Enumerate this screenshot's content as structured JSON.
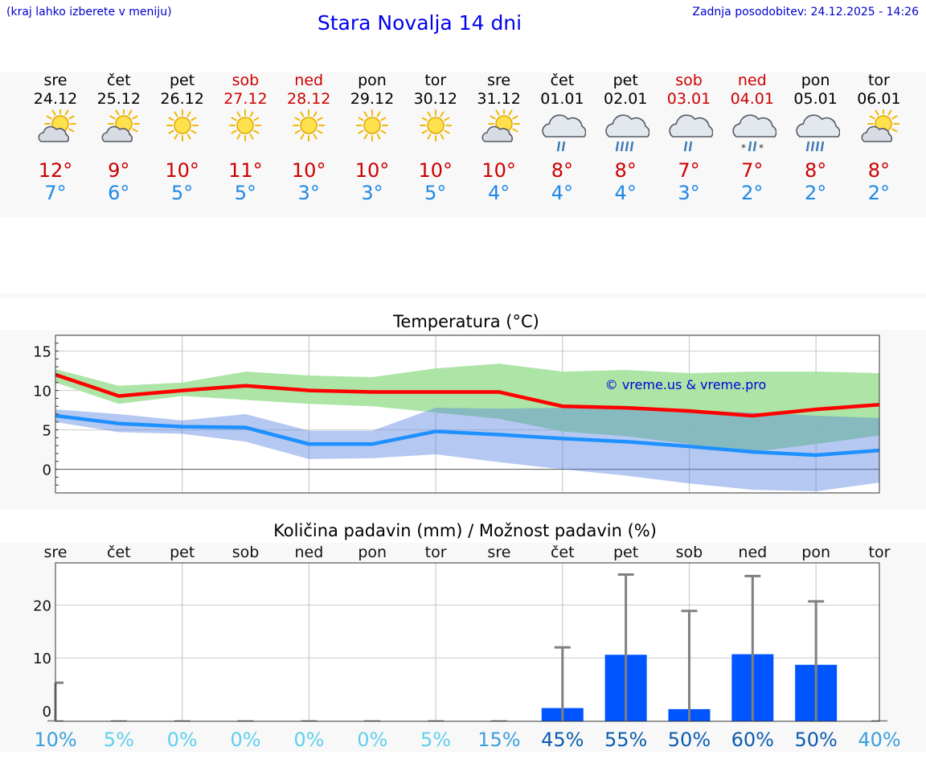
{
  "header": {
    "location_hint": "(kraj lahko izberete v meniju)",
    "title": "Stara Novalja 14 dni",
    "updated": "Zadnja posodobitev: 24.12.2025 - 14:26"
  },
  "days": [
    {
      "name": "sre",
      "date": "24.12",
      "weekend": false,
      "icon": "partly-sunny-icon",
      "max": "12°",
      "min": "7°"
    },
    {
      "name": "čet",
      "date": "25.12",
      "weekend": false,
      "icon": "partly-sunny-icon",
      "max": "9°",
      "min": "6°"
    },
    {
      "name": "pet",
      "date": "26.12",
      "weekend": false,
      "icon": "sun-icon",
      "max": "10°",
      "min": "5°"
    },
    {
      "name": "sob",
      "date": "27.12",
      "weekend": true,
      "icon": "sun-icon",
      "max": "11°",
      "min": "5°"
    },
    {
      "name": "ned",
      "date": "28.12",
      "weekend": true,
      "icon": "sun-icon",
      "max": "10°",
      "min": "3°"
    },
    {
      "name": "pon",
      "date": "29.12",
      "weekend": false,
      "icon": "sun-icon",
      "max": "10°",
      "min": "3°"
    },
    {
      "name": "tor",
      "date": "30.12",
      "weekend": false,
      "icon": "sun-icon",
      "max": "10°",
      "min": "5°"
    },
    {
      "name": "sre",
      "date": "31.12",
      "weekend": false,
      "icon": "partly-sunny-icon",
      "max": "10°",
      "min": "4°"
    },
    {
      "name": "čet",
      "date": "01.01",
      "weekend": false,
      "icon": "rain-icon",
      "max": "8°",
      "min": "4°"
    },
    {
      "name": "pet",
      "date": "02.01",
      "weekend": false,
      "icon": "heavy-rain-icon",
      "max": "8°",
      "min": "4°"
    },
    {
      "name": "sob",
      "date": "03.01",
      "weekend": true,
      "icon": "rain-icon",
      "max": "7°",
      "min": "3°"
    },
    {
      "name": "ned",
      "date": "04.01",
      "weekend": true,
      "icon": "sleet-icon",
      "max": "7°",
      "min": "2°"
    },
    {
      "name": "pon",
      "date": "05.01",
      "weekend": false,
      "icon": "heavy-rain-icon",
      "max": "8°",
      "min": "2°"
    },
    {
      "name": "tor",
      "date": "06.01",
      "weekend": false,
      "icon": "partly-sunny-icon",
      "max": "8°",
      "min": "2°"
    }
  ],
  "colors": {
    "max_line": "#ff0000",
    "min_line": "#1e90ff",
    "max_band": "#a8e4a0",
    "min_band": "#aec6f2",
    "overlap_band": "#7cc3a2",
    "bar": "#0055ff",
    "errbar": "#808080",
    "header_text": "#0000cc",
    "weekend": "#cc0000"
  },
  "chart_data": [
    {
      "type": "line",
      "title": "Temperatura (°C)",
      "watermark": "© vreme.us & vreme.pro",
      "x": [
        0,
        1,
        2,
        3,
        4,
        5,
        6,
        7,
        8,
        9,
        10,
        11,
        12,
        13
      ],
      "ylim": [
        -3,
        17
      ],
      "yticks": [
        0,
        5,
        10,
        15
      ],
      "series": [
        {
          "name": "max",
          "values": [
            12,
            9.3,
            10,
            10.6,
            10,
            9.8,
            9.8,
            9.8,
            8,
            7.8,
            7.4,
            6.8,
            7.6,
            8.2
          ]
        },
        {
          "name": "min",
          "values": [
            6.8,
            5.8,
            5.4,
            5.3,
            3.2,
            3.2,
            4.8,
            4.4,
            3.9,
            3.5,
            2.9,
            2.2,
            1.8,
            2.4
          ]
        }
      ],
      "bands": [
        {
          "name": "max_range",
          "lower": [
            11,
            8.3,
            9.3,
            8.8,
            8.3,
            8,
            7.2,
            6.4,
            4.8,
            4.2,
            3.2,
            2.2,
            3.2,
            4.3
          ],
          "upper": [
            12.7,
            10.6,
            11,
            12.4,
            11.9,
            11.7,
            12.8,
            13.4,
            12.4,
            12.6,
            12.2,
            12.4,
            12.4,
            12.2
          ]
        },
        {
          "name": "min_range",
          "lower": [
            6,
            4.7,
            4.5,
            3.5,
            1.3,
            1.4,
            1.9,
            0.9,
            0,
            -0.8,
            -1.8,
            -2.6,
            -2.8,
            -1.7
          ],
          "upper": [
            7.6,
            7,
            6.2,
            7,
            4.9,
            4.9,
            7.8,
            7.7,
            7.8,
            7.7,
            7.4,
            7.2,
            6.8,
            6.5
          ]
        }
      ]
    },
    {
      "type": "bar",
      "title": "Količina padavin (mm) / Možnost padavin (%)",
      "categories": [
        "sre",
        "čet",
        "pet",
        "sob",
        "ned",
        "pon",
        "tor",
        "sre",
        "čet",
        "pet",
        "sob",
        "ned",
        "pon",
        "tor"
      ],
      "ylim": [
        -2,
        28
      ],
      "yticks": [
        0,
        10,
        20
      ],
      "values": [
        0,
        0,
        0,
        0,
        0,
        0,
        0,
        0,
        0.5,
        10.6,
        0.3,
        10.7,
        8.7,
        0
      ],
      "error_max": [
        5.3,
        0,
        0,
        0,
        0,
        0,
        0,
        0,
        12,
        25.8,
        18.9,
        25.5,
        20.7,
        0
      ],
      "probabilities": [
        "10%",
        "5%",
        "0%",
        "0%",
        "0%",
        "0%",
        "5%",
        "15%",
        "45%",
        "55%",
        "50%",
        "60%",
        "50%",
        "40%"
      ]
    }
  ]
}
